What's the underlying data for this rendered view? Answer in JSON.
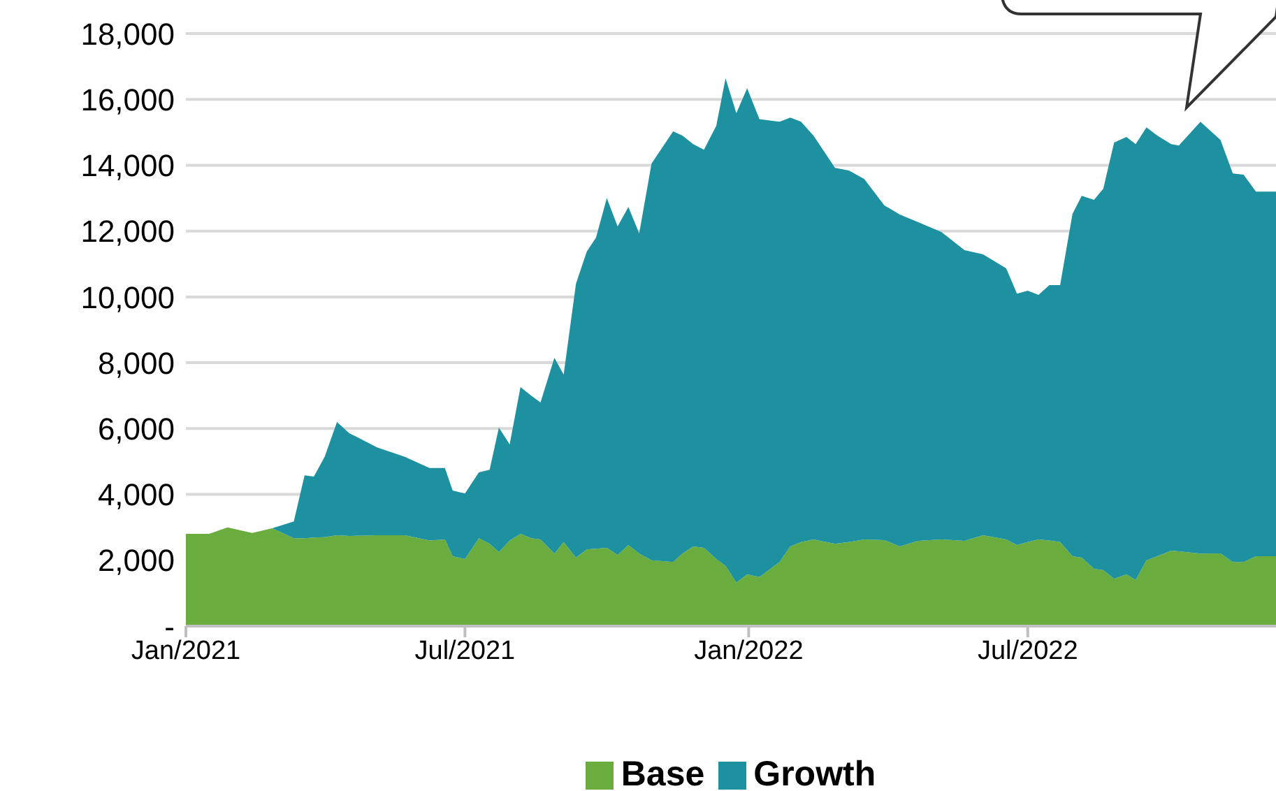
{
  "chart_data": {
    "type": "area",
    "stacked": true,
    "grid": "y",
    "legend": "bottom",
    "x": [
      "2021-01-01",
      "2021-01-16",
      "2021-01-28",
      "2021-02-13",
      "2021-02-26",
      "2021-03-12",
      "2021-03-19",
      "2021-03-25",
      "2021-04-01",
      "2021-04-09",
      "2021-04-17",
      "2021-05-05",
      "2021-05-23",
      "2021-06-08",
      "2021-06-18",
      "2021-06-23",
      "2021-07-01",
      "2021-07-10",
      "2021-07-17",
      "2021-07-23",
      "2021-07-30",
      "2021-08-06",
      "2021-08-13",
      "2021-08-19",
      "2021-08-28",
      "2021-09-03",
      "2021-09-11",
      "2021-09-18",
      "2021-09-24",
      "2021-10-01",
      "2021-10-08",
      "2021-10-15",
      "2021-10-22",
      "2021-10-30",
      "2021-11-13",
      "2021-11-19",
      "2021-11-26",
      "2021-12-03",
      "2021-12-11",
      "2021-12-17",
      "2021-12-24",
      "2021-12-31",
      "2022-01-08",
      "2022-01-21",
      "2022-01-28",
      "2022-02-04",
      "2022-02-12",
      "2022-02-26",
      "2022-03-07",
      "2022-03-17",
      "2022-03-30",
      "2022-04-09",
      "2022-04-21",
      "2022-05-06",
      "2022-05-21",
      "2022-06-02",
      "2022-06-17",
      "2022-06-24",
      "2022-07-01",
      "2022-07-08",
      "2022-07-15",
      "2022-07-22",
      "2022-07-30",
      "2022-08-05",
      "2022-08-13",
      "2022-08-19",
      "2022-08-26",
      "2022-09-03",
      "2022-09-09",
      "2022-09-16",
      "2022-09-23",
      "2022-10-02",
      "2022-10-07",
      "2022-10-21",
      "2022-11-03",
      "2022-11-11",
      "2022-11-18",
      "2022-11-26",
      "2022-12-09"
    ],
    "xlim": [
      "2021-01-01",
      "2022-12-09"
    ],
    "xticks": [
      {
        "value": "2021-01-01",
        "label": "Jan/2021"
      },
      {
        "value": "2021-07-01",
        "label": "Jul/2021"
      },
      {
        "value": "2022-01-01",
        "label": "Jan/2022"
      },
      {
        "value": "2022-07-01",
        "label": "Jul/2022"
      }
    ],
    "ylim": [
      0,
      18000
    ],
    "yticks": [
      {
        "value": 0,
        "label": "-"
      },
      {
        "value": 2000,
        "label": "2,000"
      },
      {
        "value": 4000,
        "label": "4,000"
      },
      {
        "value": 6000,
        "label": "6,000"
      },
      {
        "value": 8000,
        "label": "8,000"
      },
      {
        "value": 10000,
        "label": "10,000"
      },
      {
        "value": 12000,
        "label": "12,000"
      },
      {
        "value": 14000,
        "label": "14,000"
      },
      {
        "value": 16000,
        "label": "16,000"
      },
      {
        "value": 18000,
        "label": "18,000"
      }
    ],
    "series": [
      {
        "name": "Base",
        "color": "#6aac3e",
        "values": [
          2800,
          2800,
          3000,
          2830,
          2970,
          2670,
          2670,
          2690,
          2700,
          2760,
          2740,
          2760,
          2760,
          2600,
          2630,
          2120,
          2040,
          2670,
          2500,
          2250,
          2600,
          2800,
          2670,
          2630,
          2200,
          2550,
          2080,
          2330,
          2350,
          2380,
          2160,
          2460,
          2200,
          2000,
          1950,
          2200,
          2420,
          2380,
          2040,
          1830,
          1320,
          1570,
          1490,
          1950,
          2420,
          2550,
          2630,
          2500,
          2550,
          2630,
          2610,
          2420,
          2590,
          2630,
          2590,
          2760,
          2630,
          2460,
          2550,
          2630,
          2600,
          2550,
          2120,
          2080,
          1740,
          1700,
          1440,
          1570,
          1400,
          2000,
          2120,
          2290,
          2270,
          2200,
          2210,
          1950,
          1950,
          2120,
          2120
        ]
      },
      {
        "name": "Growth",
        "color": "#1e91a0",
        "values": [
          0,
          0,
          0,
          0,
          0,
          510,
          1910,
          1850,
          2440,
          3440,
          3120,
          2670,
          2380,
          2200,
          2170,
          2000,
          1990,
          2000,
          2250,
          3780,
          2920,
          4460,
          4330,
          4160,
          5950,
          5090,
          8320,
          9050,
          9450,
          10620,
          9980,
          10270,
          9730,
          12050,
          13080,
          12700,
          12220,
          12090,
          13160,
          14810,
          14260,
          14770,
          13910,
          13370,
          13030,
          12770,
          12270,
          11420,
          11290,
          10950,
          10170,
          10080,
          9680,
          9340,
          8830,
          8530,
          8240,
          7640,
          7640,
          7430,
          7760,
          7810,
          10400,
          10990,
          11210,
          11590,
          13250,
          13290,
          13240,
          13150,
          12780,
          12350,
          12330,
          13120,
          12560,
          11800,
          11760,
          11080,
          11080
        ]
      }
    ]
  }
}
